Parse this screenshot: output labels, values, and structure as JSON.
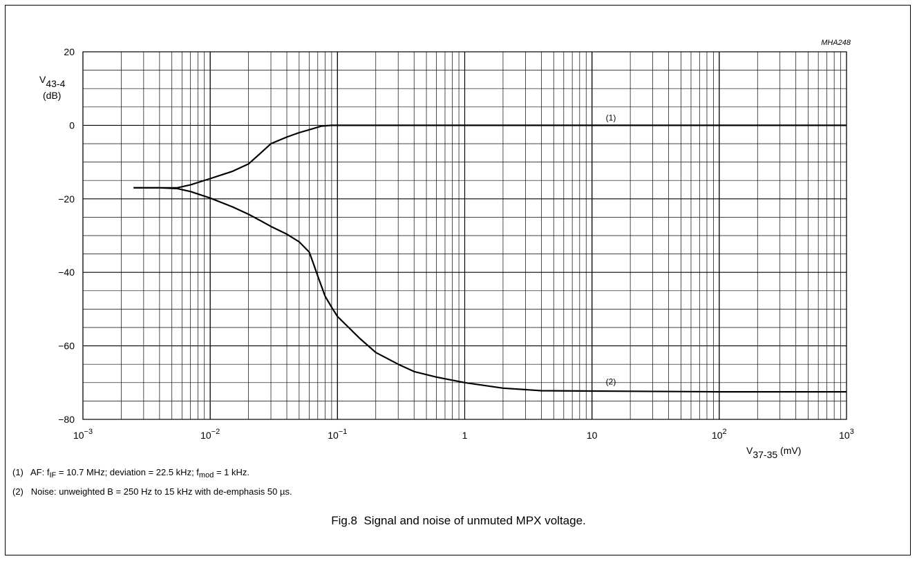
{
  "chart_data": {
    "type": "line",
    "code": "MHA248",
    "ylabel": {
      "symbol": "V",
      "sub": "43-4",
      "unit": "(dB)"
    },
    "xlabel": {
      "symbol": "V",
      "sub": "37-35",
      "unit": "(mV)"
    },
    "xscale": "log",
    "xlim": [
      0.001,
      1000
    ],
    "ylim": [
      -80,
      20
    ],
    "grid": true,
    "yticks": [
      "20",
      "0",
      "−20",
      "−40",
      "−60",
      "−80"
    ],
    "ytick_values": [
      20,
      0,
      -20,
      -40,
      -60,
      -80
    ],
    "xticks": [
      {
        "base": "10",
        "exp": "−3",
        "value": 0.001
      },
      {
        "base": "10",
        "exp": "−2",
        "value": 0.01
      },
      {
        "base": "10",
        "exp": "−1",
        "value": 0.1
      },
      {
        "base": "1",
        "exp": "",
        "value": 1
      },
      {
        "base": "10",
        "exp": "",
        "value": 10
      },
      {
        "base": "10",
        "exp": "2",
        "value": 100
      },
      {
        "base": "10",
        "exp": "3",
        "value": 1000
      }
    ],
    "series": [
      {
        "name": "(1)",
        "label_at": [
          10,
          1.3
        ],
        "x": [
          0.0025,
          0.004,
          0.0055,
          0.007,
          0.01,
          0.015,
          0.02,
          0.025,
          0.03,
          0.04,
          0.05,
          0.06,
          0.075,
          0.09,
          0.1,
          1,
          10,
          100,
          1000
        ],
        "y": [
          -17,
          -17,
          -17,
          -16.2,
          -14.5,
          -12.5,
          -10.5,
          -7.5,
          -5,
          -3.2,
          -2,
          -1.2,
          -0.2,
          0,
          0,
          0,
          0,
          0,
          0
        ]
      },
      {
        "name": "(2)",
        "label_at": [
          10,
          -70.5
        ],
        "x": [
          0.0025,
          0.004,
          0.0055,
          0.007,
          0.01,
          0.015,
          0.02,
          0.025,
          0.03,
          0.04,
          0.05,
          0.06,
          0.065,
          0.07,
          0.08,
          0.09,
          0.1,
          0.15,
          0.2,
          0.3,
          0.4,
          0.6,
          1,
          2,
          4,
          10,
          100,
          1000
        ],
        "y": [
          -17,
          -17,
          -17.2,
          -18,
          -19.8,
          -22.2,
          -24.2,
          -26,
          -27.5,
          -29.6,
          -31.7,
          -34.5,
          -37.8,
          -41,
          -46.5,
          -49.5,
          -52,
          -58,
          -61.8,
          -65,
          -67,
          -68.5,
          -70,
          -71.5,
          -72.2,
          -72.3,
          -72.5,
          -72.5
        ]
      }
    ]
  },
  "notes": {
    "note1": {
      "num": "(1)",
      "a": "AF: f",
      "sub1": "IF",
      "b": " = 10.7 MHz; deviation = 22.5 kHz; f",
      "sub2": "mod",
      "c": " = 1 kHz."
    },
    "note2": {
      "num": "(2)",
      "text": "Noise: unweighted B = 250 Hz to 15 kHz with de-emphasis 50 µs."
    }
  },
  "caption": "Fig.8  Signal and noise of unmuted MPX voltage."
}
